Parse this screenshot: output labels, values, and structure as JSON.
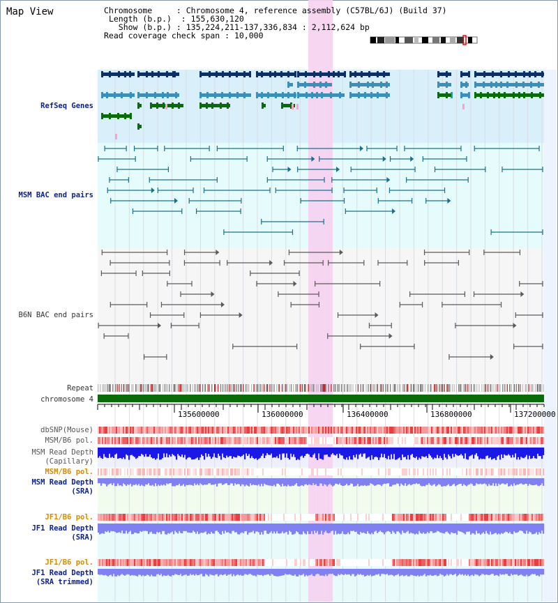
{
  "header": {
    "title": "Map View",
    "chromosome_label": "Chromosome",
    "chromosome_value": "Chromosome 4, reference assembly (C57BL/6J) (Build 37)",
    "length_label": "Length (b.p.)",
    "length_value": "155,630,120",
    "show_label": "Show (b.p.)",
    "show_value": "135,224,211-137,336,834 : 2,112,624 bp",
    "coverage_label": "Read coverage check span",
    "coverage_value": "10,000"
  },
  "tracks": {
    "refseq": "RefSeq Genes",
    "msm_bac": "MSM BAC end pairs",
    "b6n_bac": "B6N BAC end pairs",
    "repeat": "Repeat",
    "chromosome": "chromosome 4",
    "dbsnp": "dbSNP(Mouse)",
    "msm_b6_pol": "MSM/B6 pol.",
    "msm_depth_cap_1": "MSM Read Depth",
    "msm_depth_cap_2": "(Capillary)",
    "msm_b6_pol_2": "MSM/B6 pol.",
    "msm_depth_sra_1": "MSM Read Depth",
    "msm_depth_sra_2": "(SRA)",
    "jf1_b6_pol": "JF1/B6 pol.",
    "jf1_depth_sra_1": "JF1 Read Depth",
    "jf1_depth_sra_2": "(SRA)",
    "jf1_b6_pol_2": "JF1/B6 pol.",
    "jf1_depth_trim_1": "JF1 Read Depth",
    "jf1_depth_trim_2": "(SRA trimmed)"
  },
  "axis": {
    "ticks": [
      "135600000",
      "136000000",
      "136400000",
      "136800000",
      "137200000"
    ]
  },
  "colors": {
    "navy": "#0a1f8f",
    "orange": "#d98a00",
    "highlight": "#f6d2f1",
    "refseq_bg": "#d9effa",
    "chromosome_bar": "#0a6b0a"
  }
}
